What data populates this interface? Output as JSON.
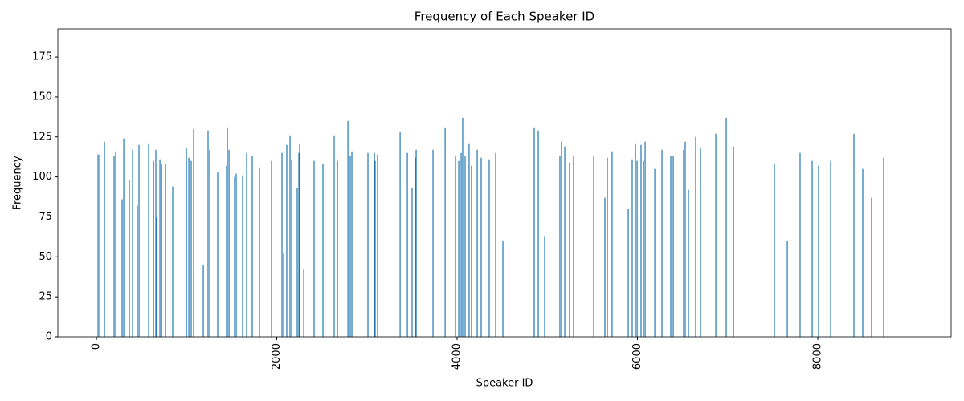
{
  "chart_data": {
    "type": "bar",
    "title": "Frequency of Each Speaker ID",
    "xlabel": "Speaker ID",
    "ylabel": "Frequency",
    "color": "#1f77b4",
    "x": [
      18,
      36,
      89,
      196,
      214,
      285,
      303,
      365,
      401,
      454,
      472,
      579,
      633,
      659,
      668,
      704,
      722,
      766,
      846,
      998,
      1025,
      1051,
      1078,
      1185,
      1238,
      1256,
      1345,
      1443,
      1452,
      1470,
      1532,
      1550,
      1621,
      1666,
      1728,
      1808,
      1942,
      2058,
      2076,
      2111,
      2147,
      2165,
      2227,
      2245,
      2254,
      2299,
      2414,
      2512,
      2637,
      2673,
      2789,
      2815,
      2833,
      3011,
      3083,
      3091,
      3118,
      3368,
      3448,
      3501,
      3537,
      3546,
      3733,
      3867,
      3982,
      4018,
      4045,
      4062,
      4089,
      4133,
      4160,
      4223,
      4267,
      4356,
      4428,
      4508,
      4855,
      4900,
      4971,
      5140,
      5158,
      5194,
      5247,
      5292,
      5515,
      5639,
      5666,
      5719,
      5898,
      5942,
      5978,
      5996,
      6040,
      6067,
      6085,
      6192,
      6272,
      6370,
      6397,
      6512,
      6530,
      6566,
      6646,
      6699,
      6869,
      6985,
      7065,
      7519,
      7662,
      7804,
      7938,
      8009,
      8143,
      8401,
      8499,
      8597,
      8731
    ],
    "values": [
      114,
      114,
      122,
      113,
      116,
      86,
      124,
      98,
      117,
      82,
      120,
      121,
      110,
      117,
      75,
      111,
      108,
      108,
      94,
      118,
      112,
      110,
      130,
      45,
      129,
      117,
      103,
      107,
      131,
      117,
      100,
      102,
      101,
      115,
      113,
      106,
      110,
      115,
      52,
      120,
      126,
      111,
      93,
      115,
      121,
      42,
      110,
      108,
      126,
      110,
      135,
      113,
      116,
      115,
      115,
      110,
      114,
      128,
      115,
      93,
      112,
      117,
      117,
      131,
      113,
      110,
      115,
      137,
      113,
      121,
      107,
      117,
      112,
      111,
      115,
      60,
      131,
      129,
      63,
      113,
      122,
      119,
      109,
      113,
      113,
      87,
      112,
      116,
      80,
      111,
      121,
      110,
      120,
      110,
      122,
      105,
      117,
      113,
      113,
      117,
      122,
      92,
      125,
      118,
      127,
      137,
      119,
      108,
      60,
      115,
      110,
      107,
      110,
      127,
      105,
      87,
      112
    ],
    "xlim": [
      -428,
      9479
    ],
    "ylim": [
      0,
      192.6
    ],
    "xticks": [
      0,
      2000,
      4000,
      6000,
      8000
    ],
    "yticks": [
      0,
      25,
      50,
      75,
      100,
      125,
      150,
      175
    ]
  }
}
